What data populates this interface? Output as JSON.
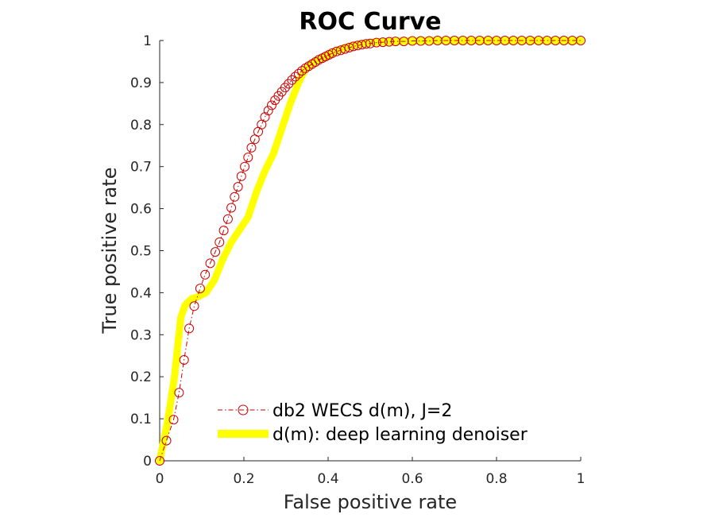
{
  "chart_data": {
    "type": "line",
    "title": "ROC Curve",
    "xlabel": "False positive rate",
    "ylabel": "True positive rate",
    "xlim": [
      0,
      1
    ],
    "ylim": [
      0,
      1
    ],
    "xticks": [
      "0",
      "0.2",
      "0.4",
      "0.6",
      "0.8",
      "1"
    ],
    "yticks": [
      "0",
      "0.1",
      "0.2",
      "0.3",
      "0.4",
      "0.5",
      "0.6",
      "0.7",
      "0.8",
      "0.9",
      "1"
    ],
    "grid": false,
    "legend_position": "bottom-right",
    "series": [
      {
        "name": "db2 WECS d(m), J=2",
        "color": "#cc0000",
        "style": "dash-dot-circle-markers",
        "x": [
          0,
          0.016,
          0.033,
          0.046,
          0.058,
          0.07,
          0.082,
          0.096,
          0.108,
          0.12,
          0.132,
          0.142,
          0.152,
          0.162,
          0.17,
          0.178,
          0.186,
          0.194,
          0.202,
          0.21,
          0.218,
          0.226,
          0.234,
          0.242,
          0.25,
          0.258,
          0.266,
          0.274,
          0.282,
          0.29,
          0.298,
          0.306,
          0.314,
          0.322,
          0.33,
          0.338,
          0.346,
          0.354,
          0.362,
          0.37,
          0.378,
          0.386,
          0.394,
          0.402,
          0.41,
          0.42,
          0.43,
          0.44,
          0.45,
          0.46,
          0.47,
          0.48,
          0.49,
          0.5,
          0.515,
          0.53,
          0.545,
          0.56,
          0.58,
          0.6,
          0.62,
          0.64,
          0.66,
          0.68,
          0.7,
          0.72,
          0.74,
          0.76,
          0.78,
          0.8,
          0.82,
          0.84,
          0.86,
          0.88,
          0.9,
          0.92,
          0.94,
          0.96,
          0.98,
          1.0
        ],
        "y": [
          0,
          0.048,
          0.098,
          0.162,
          0.24,
          0.315,
          0.368,
          0.41,
          0.443,
          0.47,
          0.497,
          0.52,
          0.548,
          0.575,
          0.602,
          0.628,
          0.652,
          0.677,
          0.7,
          0.722,
          0.745,
          0.765,
          0.783,
          0.8,
          0.818,
          0.833,
          0.846,
          0.858,
          0.868,
          0.878,
          0.888,
          0.897,
          0.906,
          0.914,
          0.921,
          0.928,
          0.934,
          0.939,
          0.944,
          0.949,
          0.954,
          0.958,
          0.962,
          0.966,
          0.97,
          0.974,
          0.977,
          0.98,
          0.983,
          0.986,
          0.988,
          0.99,
          0.992,
          0.993,
          0.995,
          0.996,
          0.997,
          0.998,
          0.998,
          0.999,
          0.999,
          0.999,
          1.0,
          1.0,
          1.0,
          1.0,
          1.0,
          1.0,
          1.0,
          1.0,
          1.0,
          1.0,
          1.0,
          1.0,
          1.0,
          1.0,
          1.0,
          1.0,
          1.0,
          1.0
        ]
      },
      {
        "name": "d(m): deep learning denoiser",
        "color": "#ffff00",
        "style": "thick-solid",
        "x": [
          0,
          0.02,
          0.035,
          0.05,
          0.06,
          0.075,
          0.09,
          0.11,
          0.13,
          0.15,
          0.17,
          0.19,
          0.21,
          0.23,
          0.25,
          0.27,
          0.29,
          0.31,
          0.33,
          0.345,
          0.36,
          0.38,
          0.4,
          0.42,
          0.44,
          0.46,
          0.48,
          0.5,
          0.53,
          0.56,
          0.6,
          0.65,
          0.7,
          0.8,
          0.9,
          1.0
        ],
        "y": [
          0,
          0.1,
          0.2,
          0.34,
          0.37,
          0.385,
          0.39,
          0.4,
          0.43,
          0.48,
          0.52,
          0.55,
          0.58,
          0.64,
          0.69,
          0.73,
          0.79,
          0.85,
          0.9,
          0.93,
          0.945,
          0.955,
          0.965,
          0.975,
          0.983,
          0.988,
          0.992,
          0.995,
          0.997,
          0.998,
          0.999,
          1.0,
          1.0,
          1.0,
          1.0,
          1.0
        ]
      }
    ]
  }
}
